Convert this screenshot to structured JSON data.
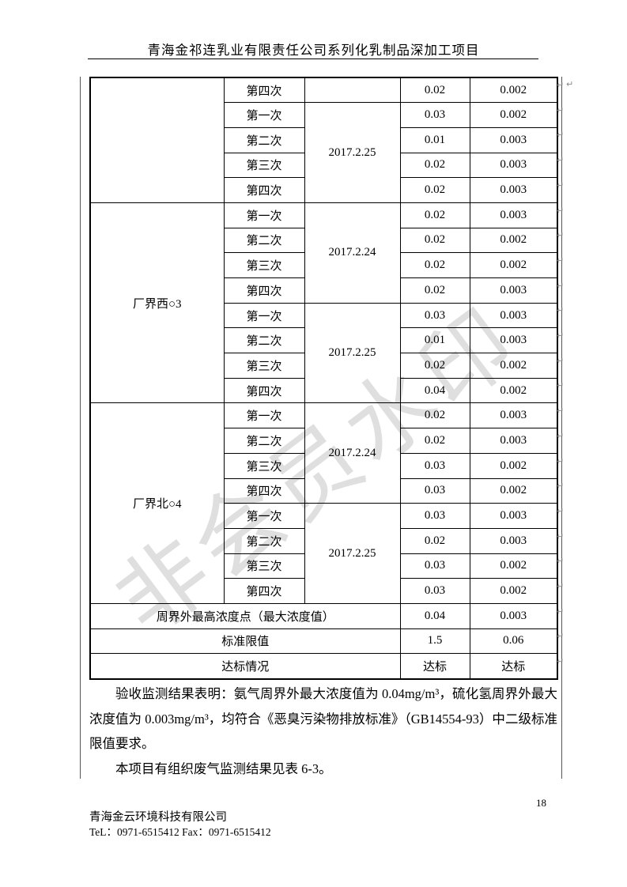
{
  "header": {
    "title": "青海金祁连乳业有限责任公司系列化乳制品深加工项目"
  },
  "watermark": {
    "text": "非会员水印"
  },
  "table": {
    "groups": [
      {
        "site": "",
        "subgroups": [
          {
            "date": "",
            "rows": [
              {
                "seq": "第四次",
                "nh3": "0.02",
                "h2s": "0.002"
              }
            ]
          },
          {
            "date": "2017.2.25",
            "rows": [
              {
                "seq": "第一次",
                "nh3": "0.03",
                "h2s": "0.002"
              },
              {
                "seq": "第二次",
                "nh3": "0.01",
                "h2s": "0.003"
              },
              {
                "seq": "第三次",
                "nh3": "0.02",
                "h2s": "0.003"
              },
              {
                "seq": "第四次",
                "nh3": "0.02",
                "h2s": "0.003"
              }
            ]
          }
        ]
      },
      {
        "site": "厂界西○3",
        "subgroups": [
          {
            "date": "2017.2.24",
            "rows": [
              {
                "seq": "第一次",
                "nh3": "0.02",
                "h2s": "0.003"
              },
              {
                "seq": "第二次",
                "nh3": "0.02",
                "h2s": "0.002"
              },
              {
                "seq": "第三次",
                "nh3": "0.02",
                "h2s": "0.002"
              },
              {
                "seq": "第四次",
                "nh3": "0.02",
                "h2s": "0.003"
              }
            ]
          },
          {
            "date": "2017.2.25",
            "rows": [
              {
                "seq": "第一次",
                "nh3": "0.03",
                "h2s": "0.003"
              },
              {
                "seq": "第二次",
                "nh3": "0.01",
                "h2s": "0.003"
              },
              {
                "seq": "第三次",
                "nh3": "0.02",
                "h2s": "0.002"
              },
              {
                "seq": "第四次",
                "nh3": "0.04",
                "h2s": "0.002"
              }
            ]
          }
        ]
      },
      {
        "site": "厂界北○4",
        "subgroups": [
          {
            "date": "2017.2.24",
            "rows": [
              {
                "seq": "第一次",
                "nh3": "0.02",
                "h2s": "0.003"
              },
              {
                "seq": "第二次",
                "nh3": "0.02",
                "h2s": "0.003"
              },
              {
                "seq": "第三次",
                "nh3": "0.03",
                "h2s": "0.002"
              },
              {
                "seq": "第四次",
                "nh3": "0.03",
                "h2s": "0.002"
              }
            ]
          },
          {
            "date": "2017.2.25",
            "rows": [
              {
                "seq": "第一次",
                "nh3": "0.03",
                "h2s": "0.003"
              },
              {
                "seq": "第二次",
                "nh3": "0.02",
                "h2s": "0.003"
              },
              {
                "seq": "第三次",
                "nh3": "0.03",
                "h2s": "0.002"
              },
              {
                "seq": "第四次",
                "nh3": "0.03",
                "h2s": "0.002"
              }
            ]
          }
        ]
      }
    ],
    "summary": [
      {
        "label": "周界外最高浓度点（最大浓度值）",
        "nh3": "0.04",
        "h2s": "0.003"
      },
      {
        "label": "标准限值",
        "nh3": "1.5",
        "h2s": "0.06"
      },
      {
        "label": "达标情况",
        "nh3": "达标",
        "h2s": "达标"
      }
    ]
  },
  "body": {
    "p1": "验收监测结果表明：氨气周界外最大浓度值为 0.04mg/m³，硫化氢周界外最大浓度值为 0.003mg/m³，均符合《恶臭污染物排放标准》（GB14554-93）中二级标准限值要求。",
    "p2": "本项目有组织废气监测结果见表 6-3。"
  },
  "footer": {
    "company": "青海金云环境科技有限公司",
    "contact": "TeL：0971-6515412 Fax：0971-6515412",
    "page_number": "18"
  },
  "marks": {
    "pilcrow": "↵"
  }
}
